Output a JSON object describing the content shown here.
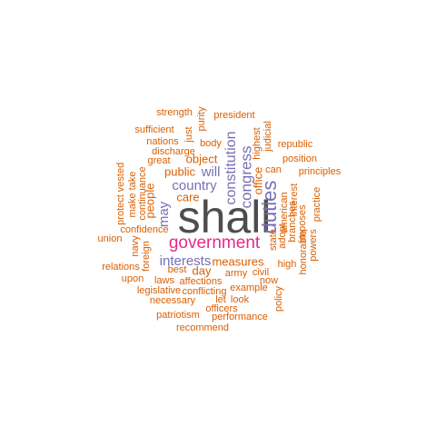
{
  "colors": {
    "dark": "#4d4d4d",
    "magenta": "#e7298a",
    "purple": "#7570b3",
    "orange": "#d95f02"
  },
  "words": [
    {
      "text": "shall",
      "color": "dark"
    },
    {
      "text": "government",
      "color": "magenta"
    },
    {
      "text": "duties",
      "color": "purple"
    },
    {
      "text": "constitution",
      "color": "purple"
    },
    {
      "text": "congress",
      "color": "purple"
    },
    {
      "text": "interests",
      "color": "purple"
    },
    {
      "text": "country",
      "color": "purple"
    },
    {
      "text": "will",
      "color": "purple"
    },
    {
      "text": "may",
      "color": "purple"
    },
    {
      "text": "measures",
      "color": "orange"
    },
    {
      "text": "object",
      "color": "orange"
    },
    {
      "text": "public",
      "color": "orange"
    },
    {
      "text": "office",
      "color": "orange"
    },
    {
      "text": "people",
      "color": "orange"
    },
    {
      "text": "care",
      "color": "orange"
    },
    {
      "text": "day",
      "color": "orange"
    },
    {
      "text": "strength",
      "color": "orange"
    },
    {
      "text": "purity",
      "color": "orange"
    },
    {
      "text": "president",
      "color": "orange"
    },
    {
      "text": "sufficient",
      "color": "orange"
    },
    {
      "text": "just",
      "color": "orange"
    },
    {
      "text": "judicial",
      "color": "orange"
    },
    {
      "text": "highest",
      "color": "orange"
    },
    {
      "text": "nations",
      "color": "orange"
    },
    {
      "text": "body",
      "color": "orange"
    },
    {
      "text": "republic",
      "color": "orange"
    },
    {
      "text": "discharge",
      "color": "orange"
    },
    {
      "text": "position",
      "color": "orange"
    },
    {
      "text": "great",
      "color": "orange"
    },
    {
      "text": "vested",
      "color": "orange"
    },
    {
      "text": "take",
      "color": "orange"
    },
    {
      "text": "can",
      "color": "orange"
    },
    {
      "text": "principles",
      "color": "orange"
    },
    {
      "text": "make",
      "color": "orange"
    },
    {
      "text": "continuance",
      "color": "orange"
    },
    {
      "text": "protect",
      "color": "orange"
    },
    {
      "text": "interest",
      "color": "orange"
    },
    {
      "text": "american",
      "color": "orange"
    },
    {
      "text": "practice",
      "color": "orange"
    },
    {
      "text": "branches",
      "color": "orange"
    },
    {
      "text": "imposes",
      "color": "orange"
    },
    {
      "text": "adopt",
      "color": "orange"
    },
    {
      "text": "state",
      "color": "orange"
    },
    {
      "text": "union",
      "color": "orange"
    },
    {
      "text": "confidence",
      "color": "orange"
    },
    {
      "text": "navy",
      "color": "orange"
    },
    {
      "text": "foreign",
      "color": "orange"
    },
    {
      "text": "honorable",
      "color": "orange"
    },
    {
      "text": "powers",
      "color": "orange"
    },
    {
      "text": "relations",
      "color": "orange"
    },
    {
      "text": "best",
      "color": "orange"
    },
    {
      "text": "army",
      "color": "orange"
    },
    {
      "text": "civil",
      "color": "orange"
    },
    {
      "text": "high",
      "color": "orange"
    },
    {
      "text": "upon",
      "color": "orange"
    },
    {
      "text": "laws",
      "color": "orange"
    },
    {
      "text": "affections",
      "color": "orange"
    },
    {
      "text": "now",
      "color": "orange"
    },
    {
      "text": "legislative",
      "color": "orange"
    },
    {
      "text": "conflicting",
      "color": "orange"
    },
    {
      "text": "example",
      "color": "orange"
    },
    {
      "text": "necessary",
      "color": "orange"
    },
    {
      "text": "let",
      "color": "orange"
    },
    {
      "text": "look",
      "color": "orange"
    },
    {
      "text": "policy",
      "color": "orange"
    },
    {
      "text": "officers",
      "color": "orange"
    },
    {
      "text": "patriotism",
      "color": "orange"
    },
    {
      "text": "performance",
      "color": "orange"
    },
    {
      "text": "recommend",
      "color": "orange"
    }
  ]
}
